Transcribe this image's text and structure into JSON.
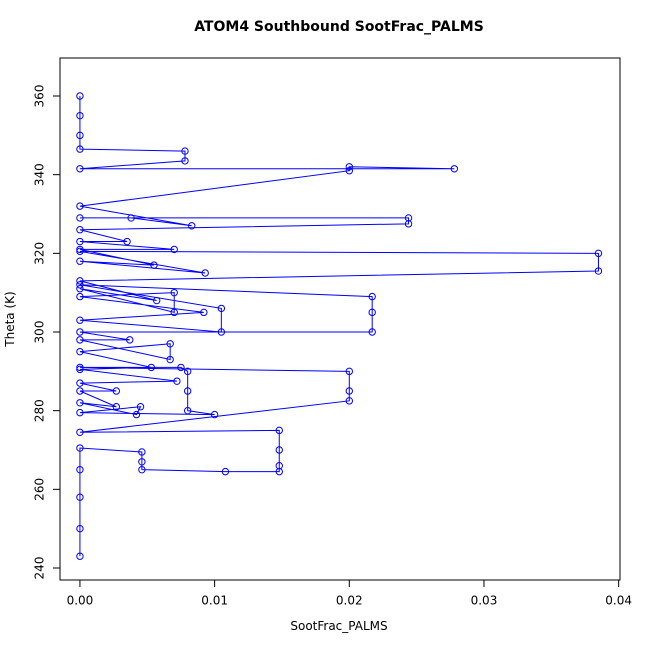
{
  "chart_data": {
    "type": "scatter",
    "title": "ATOM4 Southbound SootFrac_PALMS",
    "x_label": "SootFrac_PALMS",
    "y_label": "Theta (K)",
    "color": "#0000ff",
    "connect": true,
    "grid": false,
    "xlim": [
      -0.00148,
      0.0401
    ],
    "ylim": [
      236.95,
      369.66
    ],
    "xticks": [
      {
        "value": 0,
        "label": "0.00"
      },
      {
        "value": 0.01,
        "label": "0.01"
      },
      {
        "value": 0.02,
        "label": "0.02"
      },
      {
        "value": 0.03,
        "label": "0.03"
      },
      {
        "value": 0.04,
        "label": "0.04"
      }
    ],
    "yticks": [
      240,
      260,
      280,
      300,
      320,
      340,
      360
    ],
    "x": [
      0,
      0,
      0,
      0,
      0,
      0.0046,
      0.0046,
      0.0046,
      0.0108,
      0.0148,
      0.0148,
      0.0148,
      0.0148,
      0,
      0.02,
      0.02,
      0.02,
      0,
      0.0075,
      0.008,
      0.008,
      0.008,
      0.01,
      0,
      0.0045,
      0.0042,
      0,
      0.0027,
      0,
      0.0027,
      0,
      0.0072,
      0,
      0.0053,
      0,
      0.0067,
      0.0067,
      0,
      0.0037,
      0,
      0.0217,
      0.0217,
      0.0217,
      0,
      0.0105,
      0.0105,
      0,
      0.0092,
      0,
      0.007,
      0.007,
      0,
      0.0057,
      0,
      0.0385,
      0.0385,
      0,
      0.0093,
      0,
      0.0055,
      0,
      0.007,
      0,
      0.0035,
      0,
      0.0244,
      0.0244,
      0,
      0.0038,
      0.0083,
      0,
      0.02,
      0.02,
      0.0278,
      0,
      0.0078,
      0.0078,
      0,
      0,
      0,
      0
    ],
    "values": [
      243,
      250,
      258,
      265,
      270.5,
      269.5,
      267,
      265,
      264.5,
      264.5,
      266,
      270,
      275,
      274.5,
      282.5,
      285,
      290,
      291,
      291,
      290,
      285,
      280,
      279,
      279.5,
      281,
      279,
      282,
      281,
      285,
      285,
      287,
      287.5,
      290.5,
      291,
      295,
      297,
      293,
      298,
      298,
      300,
      300,
      305,
      309,
      312,
      306,
      300,
      303,
      305,
      309,
      310,
      305,
      311,
      308,
      313,
      315.5,
      320,
      320.5,
      315,
      318,
      317,
      321,
      321,
      323,
      323,
      326,
      327.5,
      329,
      329,
      329,
      327,
      332,
      341,
      342,
      341.5,
      341.5,
      343.5,
      346,
      346.5,
      350,
      355,
      360
    ]
  }
}
